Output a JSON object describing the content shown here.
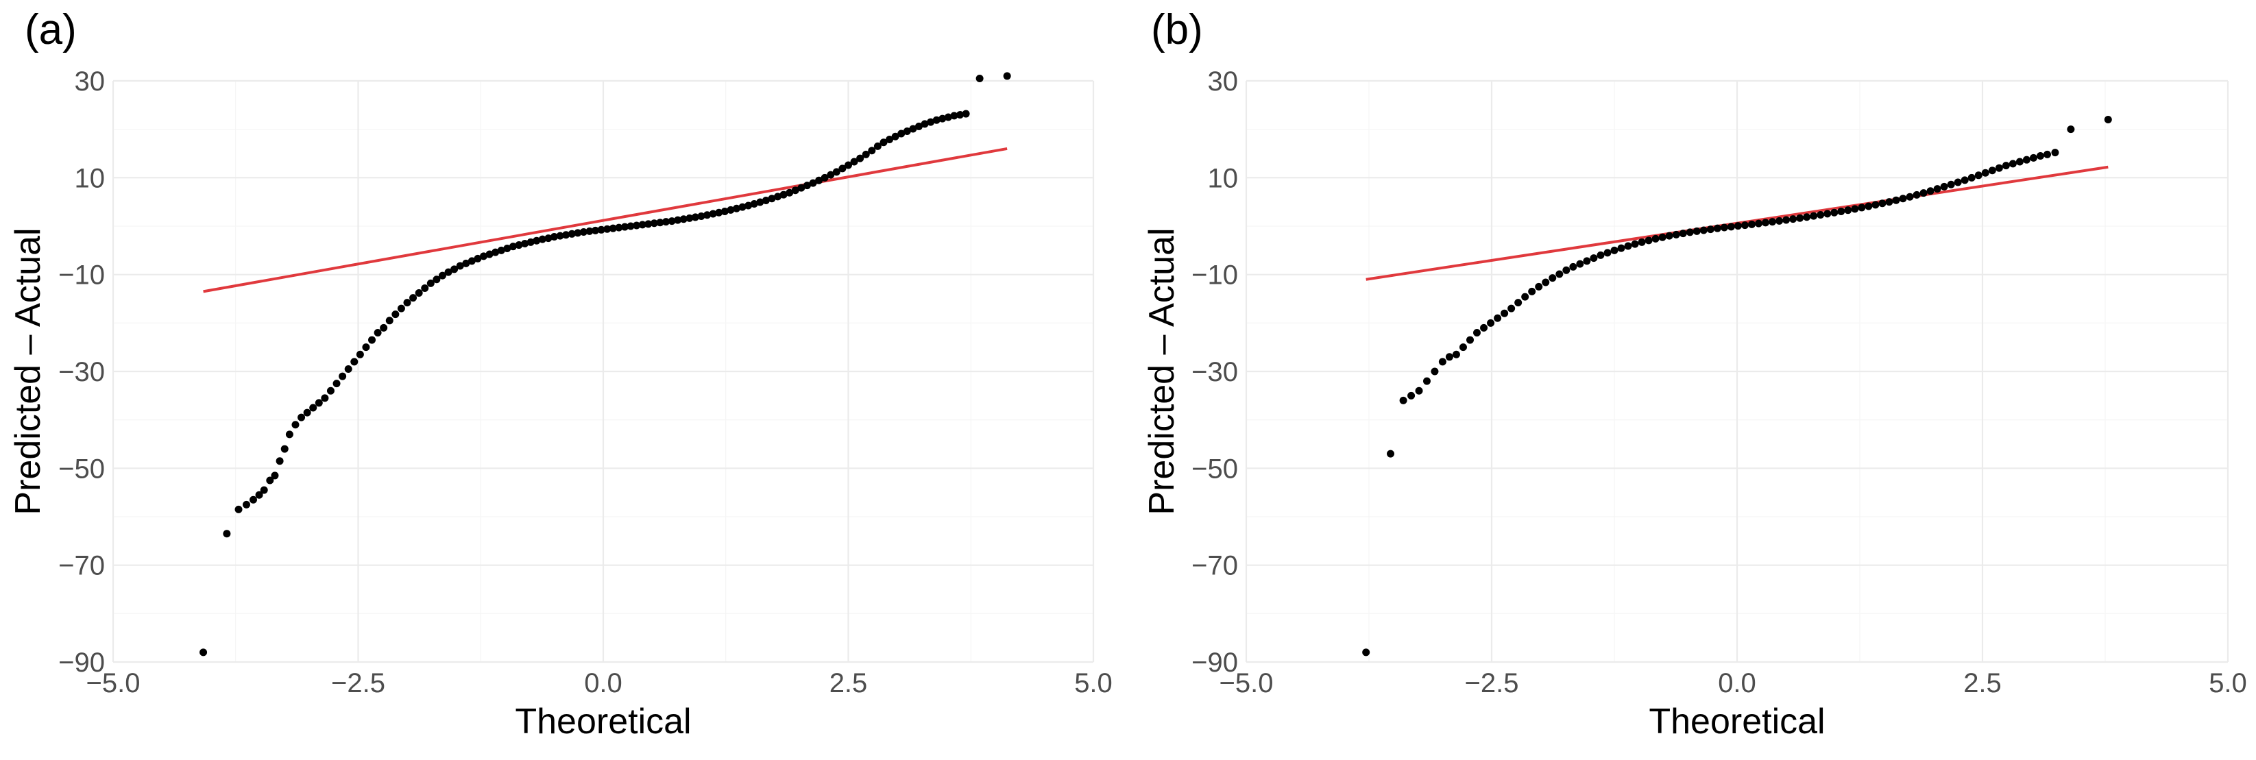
{
  "chart_data": [
    {
      "type": "scatter",
      "panel_label": "(a)",
      "title": "",
      "xlabel": "Theoretical",
      "ylabel": "Predicted – Actual",
      "xlim": [
        -5.0,
        5.0
      ],
      "ylim": [
        -90,
        30
      ],
      "x_ticks": [
        -5.0,
        -2.5,
        0.0,
        2.5,
        5.0
      ],
      "x_tick_labels": [
        "−5.0",
        "−2.5",
        "0.0",
        "2.5",
        "5.0"
      ],
      "y_ticks": [
        -90,
        -70,
        -50,
        -30,
        -10,
        10,
        30
      ],
      "y_tick_labels": [
        "−90",
        "−70",
        "−50",
        "−30",
        "−10",
        "10",
        "30"
      ],
      "grid": true,
      "legend": "none",
      "series": [
        {
          "name": "sample quantiles",
          "kind": "points",
          "color": "#000000",
          "x": [
            -4.08,
            -3.84,
            -3.72,
            -3.64,
            -3.57,
            -3.51,
            -3.46,
            -3.4,
            -3.35,
            -3.3,
            -3.25,
            -3.2,
            -3.14,
            -3.08,
            -3.02,
            -2.96,
            -2.9,
            -2.84,
            -2.78,
            -2.72,
            -2.66,
            -2.6,
            -2.54,
            -2.48,
            -2.42,
            -2.36,
            -2.3,
            -2.24,
            -2.18,
            -2.12,
            -2.06,
            -2.0,
            -1.94,
            -1.88,
            -1.82,
            -1.76,
            -1.7,
            -1.64,
            -1.58,
            -1.52,
            -1.46,
            -1.4,
            -1.34,
            -1.28,
            -1.22,
            -1.16,
            -1.1,
            -1.04,
            -0.98,
            -0.92,
            -0.86,
            -0.8,
            -0.74,
            -0.68,
            -0.62,
            -0.56,
            -0.5,
            -0.44,
            -0.38,
            -0.32,
            -0.26,
            -0.2,
            -0.14,
            -0.08,
            -0.02,
            0.04,
            0.1,
            0.16,
            0.22,
            0.28,
            0.34,
            0.4,
            0.46,
            0.52,
            0.58,
            0.64,
            0.7,
            0.76,
            0.82,
            0.88,
            0.94,
            1.0,
            1.06,
            1.12,
            1.18,
            1.24,
            1.3,
            1.36,
            1.42,
            1.48,
            1.54,
            1.6,
            1.66,
            1.72,
            1.78,
            1.84,
            1.9,
            1.96,
            2.02,
            2.08,
            2.14,
            2.2,
            2.26,
            2.32,
            2.38,
            2.44,
            2.5,
            2.56,
            2.62,
            2.68,
            2.74,
            2.8,
            2.86,
            2.92,
            2.98,
            3.04,
            3.1,
            3.16,
            3.22,
            3.28,
            3.34,
            3.4,
            3.46,
            3.52,
            3.58,
            3.64,
            3.7,
            3.84,
            4.12
          ],
          "y": [
            -88,
            -63.5,
            -58.5,
            -57.5,
            -56.5,
            -55.5,
            -54.5,
            -52.5,
            -51.5,
            -48.5,
            -46,
            -43,
            -41,
            -39.5,
            -38.5,
            -37.5,
            -36.5,
            -35.5,
            -34,
            -32.5,
            -31,
            -29.5,
            -28,
            -26.5,
            -25,
            -23.5,
            -22,
            -21,
            -19.5,
            -18.2,
            -17,
            -15.8,
            -14.8,
            -13.8,
            -12.8,
            -11.8,
            -11,
            -10.2,
            -9.5,
            -8.9,
            -8.2,
            -7.7,
            -7.2,
            -6.7,
            -6.2,
            -5.8,
            -5.4,
            -5.0,
            -4.6,
            -4.2,
            -3.9,
            -3.6,
            -3.3,
            -3.0,
            -2.7,
            -2.5,
            -2.2,
            -2.0,
            -1.8,
            -1.6,
            -1.4,
            -1.2,
            -1.05,
            -0.9,
            -0.75,
            -0.6,
            -0.45,
            -0.3,
            -0.15,
            0.0,
            0.15,
            0.3,
            0.45,
            0.6,
            0.75,
            0.9,
            1.05,
            1.25,
            1.45,
            1.65,
            1.85,
            2.05,
            2.3,
            2.55,
            2.8,
            3.05,
            3.35,
            3.65,
            3.95,
            4.25,
            4.6,
            4.95,
            5.3,
            5.7,
            6.1,
            6.5,
            6.9,
            7.4,
            7.9,
            8.4,
            8.9,
            9.45,
            10.0,
            10.6,
            11.2,
            11.9,
            12.6,
            13.3,
            14.0,
            14.8,
            15.6,
            16.5,
            17.3,
            17.9,
            18.5,
            19.1,
            19.6,
            20.1,
            20.6,
            21.1,
            21.5,
            21.9,
            22.2,
            22.5,
            22.8,
            23.0,
            23.2,
            30.5,
            31
          ]
        },
        {
          "name": "reference line",
          "kind": "line",
          "color": "#e0393d",
          "x": [
            -4.08,
            4.12
          ],
          "y": [
            -13.5,
            16.0
          ]
        }
      ]
    },
    {
      "type": "scatter",
      "panel_label": "(b)",
      "title": "",
      "xlabel": "Theoretical",
      "ylabel": "Predicted – Actual",
      "xlim": [
        -5.0,
        5.0
      ],
      "ylim": [
        -90,
        30
      ],
      "x_ticks": [
        -5.0,
        -2.5,
        0.0,
        2.5,
        5.0
      ],
      "x_tick_labels": [
        "−5.0",
        "−2.5",
        "0.0",
        "2.5",
        "5.0"
      ],
      "y_ticks": [
        -90,
        -70,
        -50,
        -30,
        -10,
        10,
        30
      ],
      "y_tick_labels": [
        "−90",
        "−70",
        "−50",
        "−30",
        "−10",
        "10",
        "30"
      ],
      "grid": true,
      "legend": "none",
      "series": [
        {
          "name": "sample quantiles",
          "kind": "points",
          "color": "#000000",
          "x": [
            -3.78,
            -3.53,
            -3.4,
            -3.32,
            -3.24,
            -3.16,
            -3.08,
            -3.0,
            -2.93,
            -2.86,
            -2.79,
            -2.72,
            -2.65,
            -2.58,
            -2.51,
            -2.44,
            -2.37,
            -2.3,
            -2.23,
            -2.16,
            -2.09,
            -2.02,
            -1.95,
            -1.88,
            -1.81,
            -1.74,
            -1.67,
            -1.6,
            -1.53,
            -1.46,
            -1.39,
            -1.32,
            -1.25,
            -1.18,
            -1.11,
            -1.04,
            -0.97,
            -0.9,
            -0.83,
            -0.76,
            -0.69,
            -0.62,
            -0.55,
            -0.48,
            -0.41,
            -0.34,
            -0.27,
            -0.2,
            -0.13,
            -0.06,
            0.01,
            0.08,
            0.15,
            0.22,
            0.29,
            0.36,
            0.43,
            0.5,
            0.57,
            0.64,
            0.71,
            0.78,
            0.85,
            0.92,
            0.99,
            1.06,
            1.13,
            1.2,
            1.27,
            1.34,
            1.41,
            1.48,
            1.55,
            1.62,
            1.69,
            1.76,
            1.83,
            1.9,
            1.97,
            2.04,
            2.11,
            2.18,
            2.25,
            2.32,
            2.39,
            2.46,
            2.53,
            2.6,
            2.67,
            2.74,
            2.81,
            2.88,
            2.95,
            3.02,
            3.09,
            3.16,
            3.24,
            3.4,
            3.78
          ],
          "y": [
            -88,
            -47,
            -36,
            -35,
            -34,
            -32,
            -30,
            -28,
            -27,
            -26.5,
            -25,
            -23.5,
            -22,
            -21,
            -20,
            -19,
            -18,
            -17,
            -15.8,
            -14.6,
            -13.5,
            -12.5,
            -11.6,
            -10.7,
            -9.9,
            -9.1,
            -8.4,
            -7.8,
            -7.2,
            -6.6,
            -6.0,
            -5.5,
            -5.0,
            -4.55,
            -4.1,
            -3.7,
            -3.3,
            -2.95,
            -2.6,
            -2.3,
            -2.0,
            -1.75,
            -1.5,
            -1.25,
            -1.05,
            -0.85,
            -0.65,
            -0.45,
            -0.28,
            -0.12,
            0.05,
            0.2,
            0.38,
            0.55,
            0.72,
            0.9,
            1.08,
            1.27,
            1.47,
            1.67,
            1.88,
            2.1,
            2.33,
            2.56,
            2.8,
            3.05,
            3.3,
            3.56,
            3.83,
            4.1,
            4.4,
            4.7,
            5.0,
            5.35,
            5.7,
            6.05,
            6.45,
            6.85,
            7.25,
            7.7,
            8.15,
            8.6,
            9.05,
            9.5,
            10.0,
            10.5,
            11.0,
            11.5,
            12.0,
            12.5,
            12.9,
            13.3,
            13.7,
            14.1,
            14.5,
            14.8,
            15.2,
            20,
            22
          ]
        },
        {
          "name": "reference line",
          "kind": "line",
          "color": "#e0393d",
          "x": [
            -3.78,
            3.78
          ],
          "y": [
            -11.0,
            12.2
          ]
        }
      ]
    }
  ]
}
